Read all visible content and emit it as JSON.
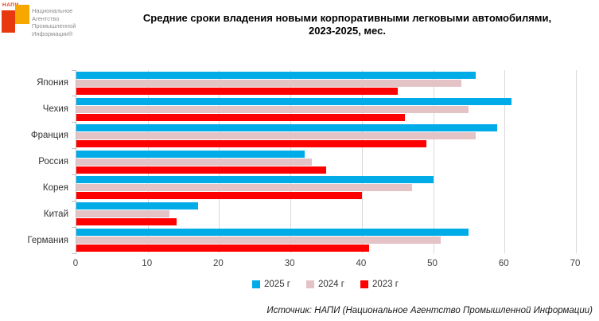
{
  "logo": {
    "mini_text": "НАПИ",
    "lines": [
      "Национальное",
      "Агентство",
      "Промышленной",
      "Информации®"
    ],
    "orange": "#f6a800",
    "red": "#e8380d"
  },
  "title": {
    "line1": "Средние сроки владения новыми корпоративными легковыми автомобилями,",
    "line2": "2023-2025, мес."
  },
  "source": "Источник: НАПИ (Национальное Агентство Промышленной Информации)",
  "chart_data": {
    "type": "bar",
    "orientation": "horizontal",
    "title": "Средние сроки владения новыми корпоративными легковыми автомобилями, 2023-2025, мес.",
    "categories": [
      "Япония",
      "Чехия",
      "Франция",
      "Россия",
      "Корея",
      "Китай",
      "Германия"
    ],
    "series": [
      {
        "name": "2025 г",
        "color": "#00ACE8",
        "values": [
          56,
          61,
          59,
          32,
          50,
          17,
          55
        ]
      },
      {
        "name": "2024 г",
        "color": "#E3C3C6",
        "values": [
          54,
          55,
          56,
          33,
          47,
          13,
          51
        ]
      },
      {
        "name": "2023 г",
        "color": "#FF0000",
        "values": [
          45,
          46,
          49,
          35,
          40,
          14,
          41
        ]
      }
    ],
    "xlim": [
      0,
      70
    ],
    "xticks": [
      0,
      10,
      20,
      30,
      40,
      50,
      60,
      70
    ],
    "grid": true,
    "legend_position": "bottom",
    "grid_color": "#d9d9d9",
    "axis_color": "#bfbfbf"
  }
}
